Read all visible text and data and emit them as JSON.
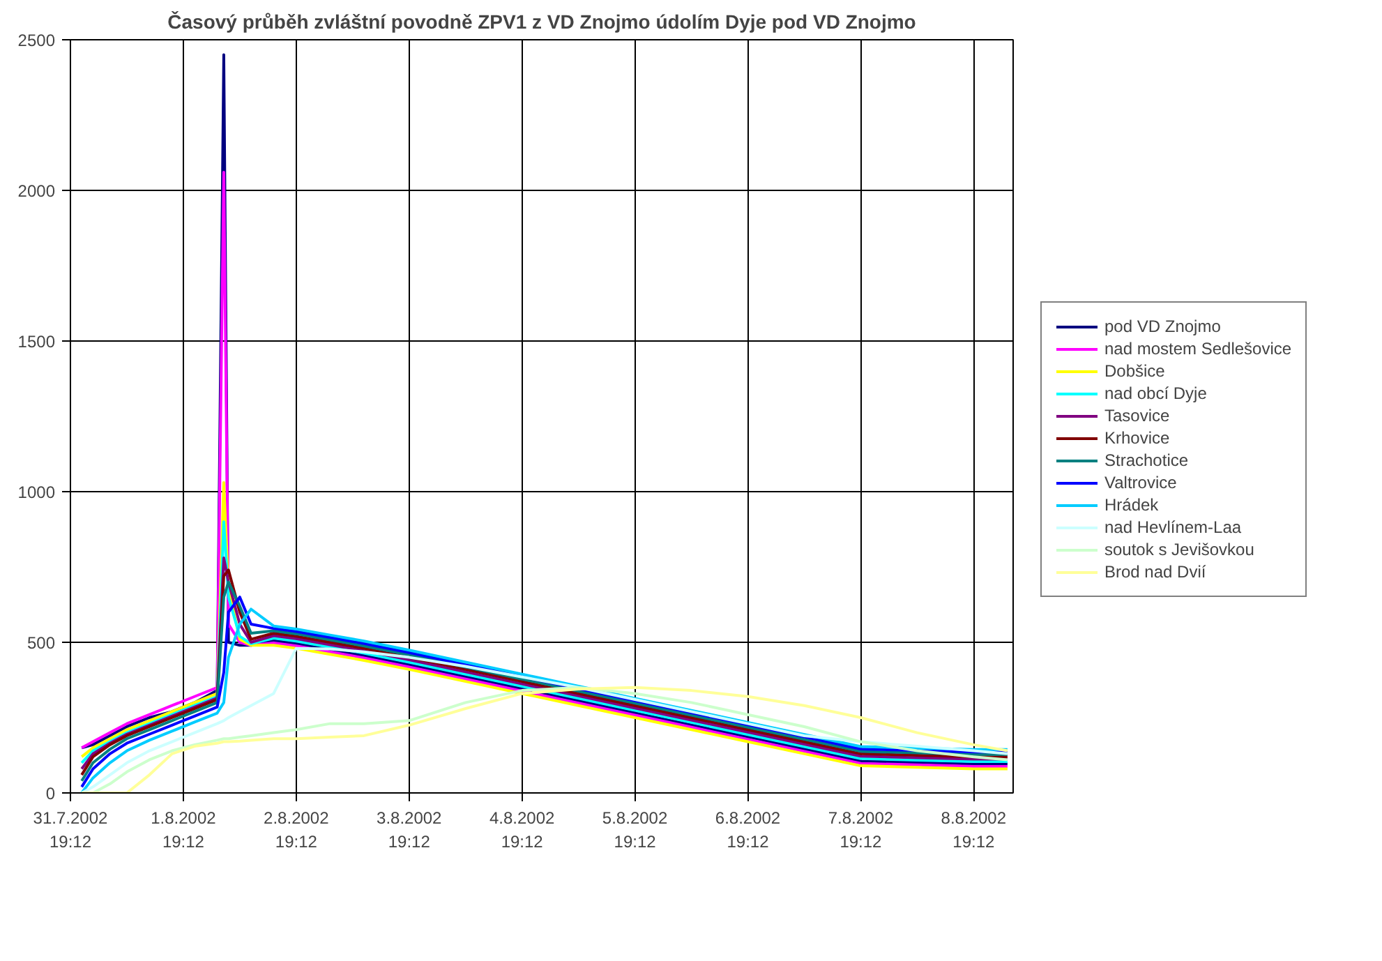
{
  "chart_data": {
    "type": "line",
    "title": "Časový průběh zvláštní povodně ZPV1 z VD Znojmo údolím Dyje pod VD Znojmo",
    "x": [
      "2002-07-31T21:36",
      "2002-08-01T00:00",
      "2002-08-01T03:36",
      "2002-08-01T07:12",
      "2002-08-01T12:00",
      "2002-08-01T16:48",
      "2002-08-01T21:36",
      "2002-08-02T02:24",
      "2002-08-02T03:48",
      "2002-08-02T04:48",
      "2002-08-02T07:12",
      "2002-08-02T09:36",
      "2002-08-02T14:24",
      "2002-08-02T19:12",
      "2002-08-03T02:24",
      "2002-08-03T09:36",
      "2002-08-03T19:12",
      "2002-08-04T07:12",
      "2002-08-04T19:12",
      "2002-08-05T07:12",
      "2002-08-05T19:12",
      "2002-08-06T07:12",
      "2002-08-06T19:12",
      "2002-08-07T07:12",
      "2002-08-07T19:12",
      "2002-08-08T07:12",
      "2002-08-08T19:12",
      "2002-08-09T02:24"
    ],
    "series": [
      {
        "name": "pod VD Znojmo",
        "color": "#000080",
        "values": [
          150,
          160,
          190,
          220,
          250,
          270,
          300,
          340,
          2450,
          500,
          490,
          490,
          506,
          496,
          476,
          456,
          426,
          386,
          346,
          306,
          266,
          226,
          186,
          146,
          106,
          101,
          96,
          96
        ]
      },
      {
        "name": "nad mostem Sedlešovice",
        "color": "#ff00ff",
        "values": [
          150,
          170,
          200,
          230,
          260,
          290,
          320,
          350,
          2060,
          560,
          500,
          490,
          498,
          488,
          468,
          448,
          418,
          378,
          338,
          298,
          258,
          218,
          178,
          138,
          98,
          93,
          88,
          88
        ]
      },
      {
        "name": "Dobšice",
        "color": "#ffff00",
        "values": [
          120,
          150,
          180,
          210,
          240,
          270,
          300,
          330,
          1030,
          680,
          510,
          490,
          490,
          480,
          460,
          440,
          410,
          370,
          330,
          290,
          250,
          210,
          170,
          130,
          90,
          85,
          80,
          80
        ]
      },
      {
        "name": "nad obcí Dyje",
        "color": "#00ffff",
        "values": [
          100,
          140,
          170,
          200,
          230,
          260,
          290,
          320,
          900,
          650,
          520,
          495,
          514,
          504,
          484,
          464,
          434,
          394,
          354,
          314,
          274,
          234,
          194,
          154,
          114,
          109,
          104,
          104
        ]
      },
      {
        "name": "Tasovice",
        "color": "#800080",
        "values": [
          80,
          130,
          165,
          195,
          225,
          255,
          285,
          315,
          780,
          700,
          560,
          500,
          522,
          512,
          492,
          472,
          442,
          402,
          362,
          322,
          282,
          242,
          202,
          162,
          122,
          117,
          112,
          112
        ]
      },
      {
        "name": "Krhovice",
        "color": "#800000",
        "values": [
          60,
          120,
          160,
          190,
          220,
          250,
          280,
          310,
          720,
          740,
          600,
          510,
          530,
          520,
          500,
          480,
          450,
          410,
          370,
          330,
          290,
          250,
          210,
          170,
          130,
          125,
          120,
          120
        ]
      },
      {
        "name": "Strachotice",
        "color": "#008080",
        "values": [
          40,
          100,
          145,
          180,
          210,
          240,
          270,
          300,
          650,
          700,
          620,
          530,
          538,
          528,
          508,
          488,
          458,
          418,
          378,
          338,
          298,
          258,
          218,
          178,
          138,
          133,
          128,
          128
        ]
      },
      {
        "name": "Valtrovice",
        "color": "#0000ff",
        "values": [
          20,
          80,
          130,
          165,
          195,
          225,
          255,
          285,
          400,
          600,
          650,
          560,
          546,
          536,
          516,
          496,
          466,
          426,
          386,
          346,
          306,
          266,
          226,
          186,
          146,
          141,
          136,
          136
        ]
      },
      {
        "name": "Hrádek",
        "color": "#00ccff",
        "values": [
          0,
          50,
          100,
          140,
          175,
          205,
          235,
          265,
          300,
          450,
          560,
          610,
          554,
          544,
          524,
          504,
          474,
          434,
          394,
          354,
          314,
          274,
          234,
          194,
          154,
          149,
          144,
          144
        ]
      },
      {
        "name": "nad Hevlínem-Laa",
        "color": "#ccffff",
        "values": [
          0,
          20,
          60,
          100,
          140,
          170,
          200,
          230,
          240,
          250,
          270,
          290,
          330,
          480,
          478,
          468,
          450,
          420,
          385,
          350,
          310,
          270,
          230,
          190,
          170,
          155,
          140,
          130
        ]
      },
      {
        "name": "soutok s Jevišovkou",
        "color": "#ccffcc",
        "values": [
          0,
          0,
          30,
          70,
          110,
          140,
          160,
          175,
          180,
          180,
          185,
          190,
          200,
          210,
          230,
          230,
          240,
          300,
          340,
          350,
          330,
          300,
          260,
          220,
          170,
          140,
          120,
          110
        ]
      },
      {
        "name": "Brod nad Dvií",
        "color": "#ffff99",
        "values": [
          0,
          0,
          0,
          0,
          60,
          130,
          155,
          165,
          170,
          170,
          172,
          175,
          180,
          180,
          185,
          190,
          225,
          280,
          330,
          345,
          350,
          340,
          320,
          290,
          250,
          200,
          160,
          140
        ]
      }
    ],
    "xlim": [
      "2002-07-31T19:12",
      "2002-08-09T03:36"
    ],
    "xticks": [
      {
        "value": "2002-07-31T19:12",
        "label": "31.7.2002\n19:12"
      },
      {
        "value": "2002-08-01T19:12",
        "label": "1.8.2002\n19:12"
      },
      {
        "value": "2002-08-02T19:12",
        "label": "2.8.2002\n19:12"
      },
      {
        "value": "2002-08-03T19:12",
        "label": "3.8.2002\n19:12"
      },
      {
        "value": "2002-08-04T19:12",
        "label": "4.8.2002\n19:12"
      },
      {
        "value": "2002-08-05T19:12",
        "label": "5.8.2002\n19:12"
      },
      {
        "value": "2002-08-06T19:12",
        "label": "6.8.2002\n19:12"
      },
      {
        "value": "2002-08-07T19:12",
        "label": "7.8.2002\n19:12"
      },
      {
        "value": "2002-08-08T19:12",
        "label": "8.8.2002\n19:12"
      }
    ],
    "ylim": [
      0,
      2500
    ],
    "yticks": [
      0,
      500,
      1000,
      1500,
      2000,
      2500
    ],
    "grid": true,
    "legend": "right",
    "line_style": "solid"
  }
}
